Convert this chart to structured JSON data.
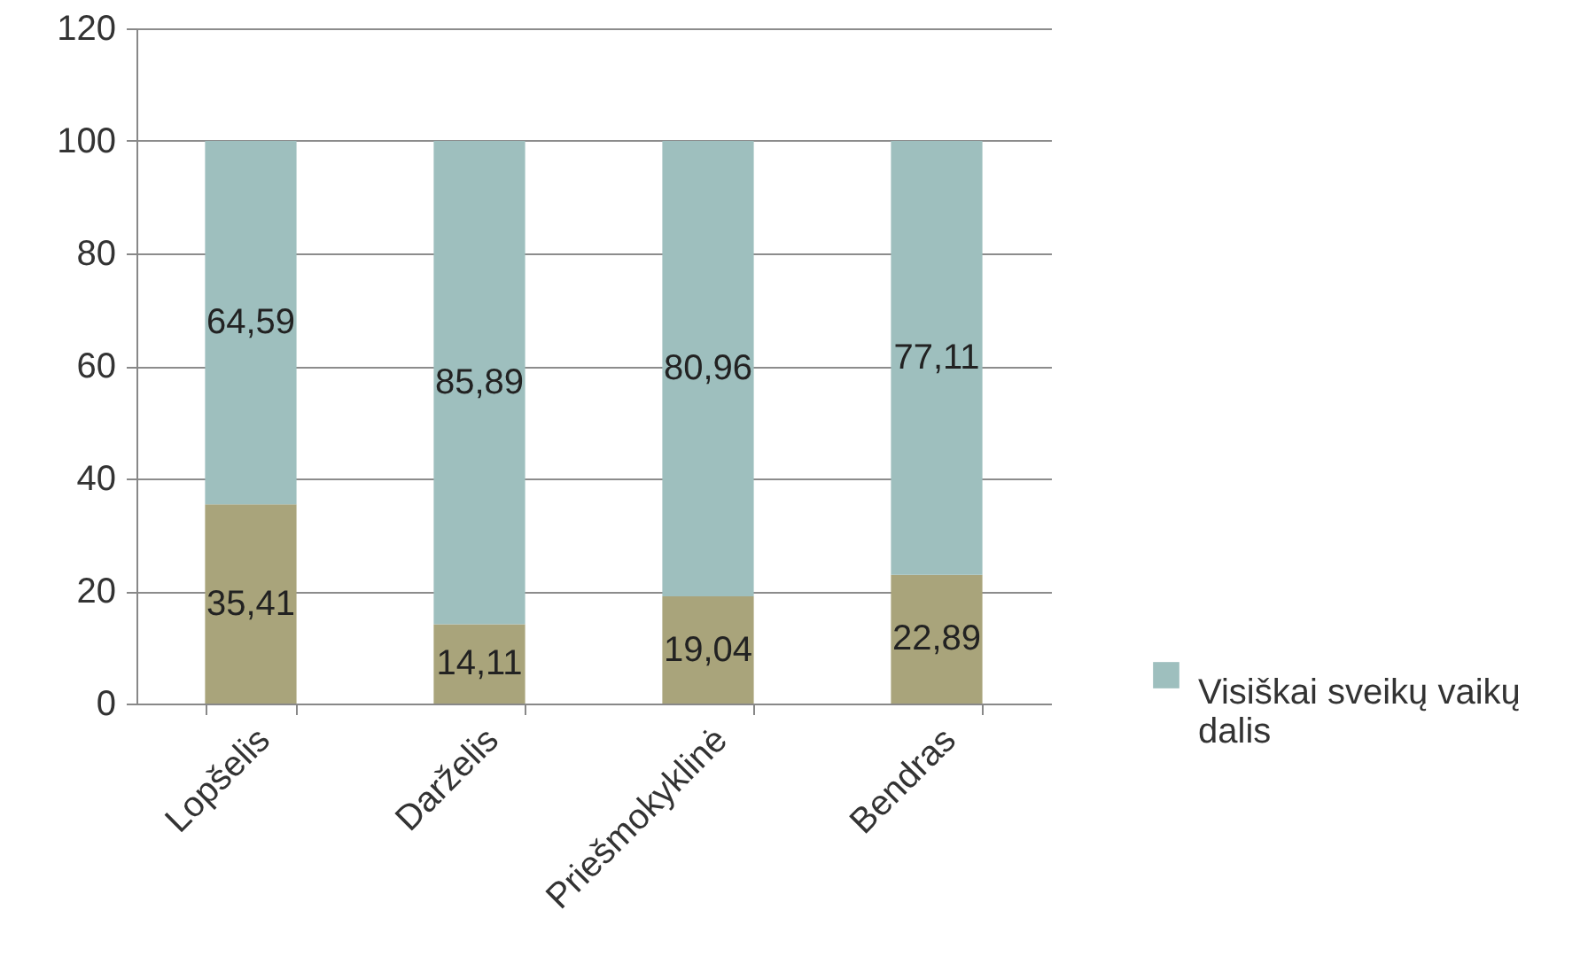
{
  "chart_data": {
    "type": "bar",
    "stacked": true,
    "categories": [
      "Lopšelis",
      "Darželis",
      "Priešmokyklinė",
      "Bendras"
    ],
    "series": [
      {
        "color": "#a9a47b",
        "values": [
          35.41,
          14.11,
          19.04,
          22.89
        ],
        "value_labels": [
          "35,41",
          "14,11",
          "19,04",
          "22,89"
        ]
      },
      {
        "name": "Visiškai sveikų vaikų dalis",
        "color": "#9ebfbe",
        "values": [
          64.59,
          85.89,
          80.96,
          77.11
        ],
        "value_labels": [
          "64,59",
          "85,89",
          "80,96",
          "77,11"
        ]
      }
    ],
    "ylim": [
      0,
      120
    ],
    "yticks": [
      0,
      20,
      40,
      60,
      80,
      100,
      120
    ],
    "grid": "y",
    "legend": "right"
  }
}
